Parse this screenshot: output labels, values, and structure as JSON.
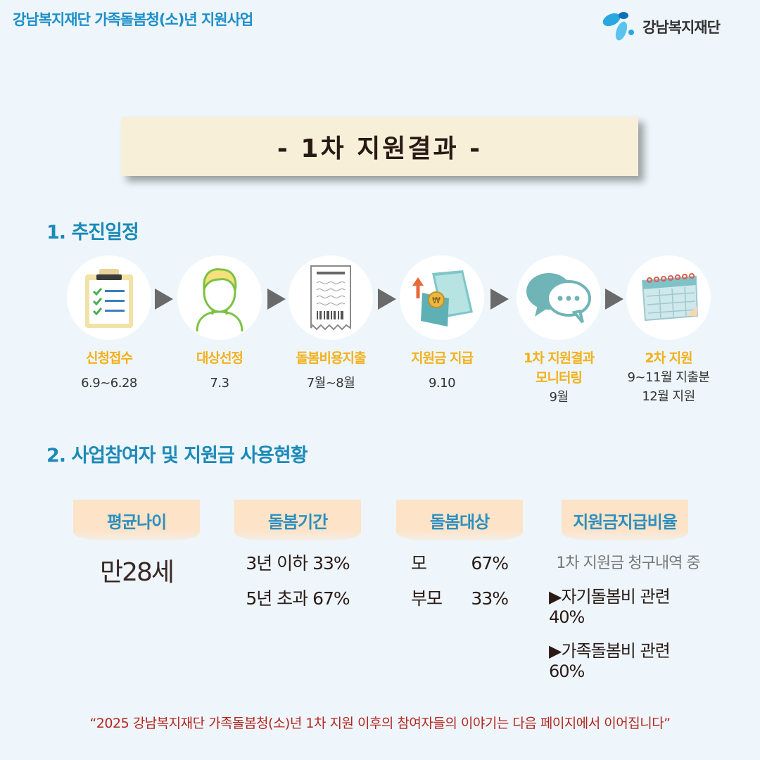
{
  "header": {
    "title": "강남복지재단 가족돌봄청(소)년 지원사업"
  },
  "logo": {
    "text": "강남복지재단"
  },
  "banner": {
    "title": "- 1차 지원결과 -"
  },
  "section1": {
    "title": "1. 추진일정",
    "steps": [
      {
        "icon": "clipboard-checklist-icon",
        "label": "신청접수",
        "date": "6.9~6.28"
      },
      {
        "icon": "person-icon",
        "label": "대상선정",
        "date": "7.3"
      },
      {
        "icon": "receipt-icon",
        "label": "돌봄비용지출",
        "date": "7월~8월"
      },
      {
        "icon": "payment-icon",
        "label": "지원금 지급",
        "date": "9.10"
      },
      {
        "icon": "chat-bubbles-icon",
        "label_line1": "1차 지원결과",
        "label_line2": "모니터링",
        "date": "9월"
      },
      {
        "icon": "calendar-icon",
        "label": "2차 지원",
        "date_line1": "9~11월 지출분",
        "date_line2": "12월 지원"
      }
    ]
  },
  "section2": {
    "title": "2. 사업참여자 및 지원금 사용현황",
    "age": {
      "head": "평균나이",
      "value": "만28세"
    },
    "period": {
      "head": "돌봄기간",
      "line1": "3년 이하 33%",
      "line2": "5년 초과 67%"
    },
    "target": {
      "head": "돌봄대상",
      "row1_label": "모",
      "row1_value": "67%",
      "row2_label": "부모",
      "row2_value": "33%"
    },
    "ratio": {
      "head": "지원금지급비율",
      "note": "1차 지원금 청구내역 중",
      "line1": "▶자기돌봄비 관련 40%",
      "line2": "▶가족돌봄비 관련 60%"
    }
  },
  "footer": {
    "quote": "“2025 강남복지재단 가족돌봄청(소)년 1차 지원 이후의 참여자들의 이야기는 다음 페이지에서 이어집니다”"
  },
  "colors": {
    "accent_blue": "#1c8ab8",
    "step_label": "#f3b01b",
    "footer_red": "#b3261e",
    "banner_bg": "#f8efd8",
    "head_bg": "#fde3c8"
  }
}
